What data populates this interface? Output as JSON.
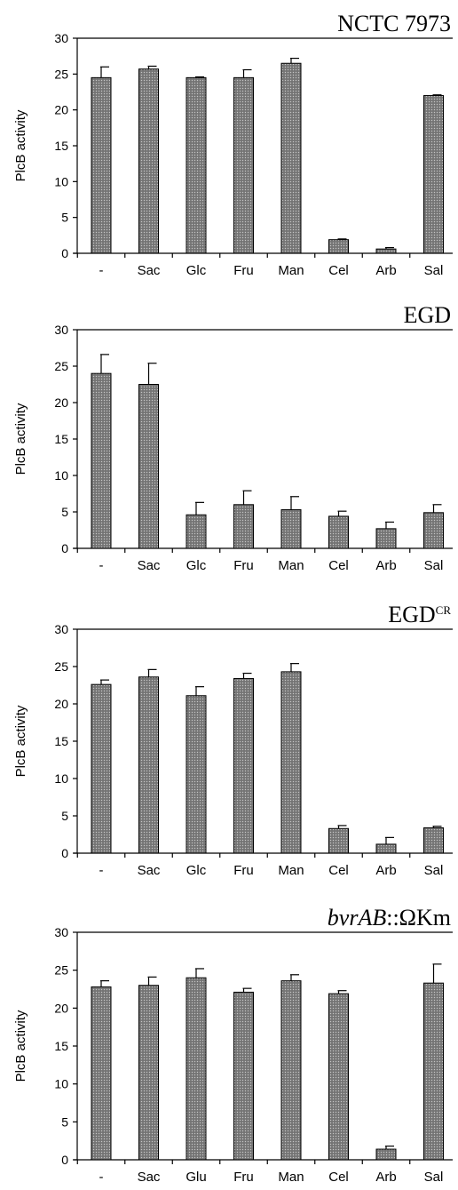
{
  "fill_color": "#7e7e7e",
  "chart_data": [
    {
      "type": "bar",
      "title": "NCTC 7973",
      "title_sup": "",
      "title_italic": "",
      "ylabel": "PlcB activity",
      "ylim": [
        0,
        30
      ],
      "yticks": [
        "0",
        "5",
        "10",
        "15",
        "20",
        "25",
        "30"
      ],
      "categories": [
        "-",
        "Sac",
        "Glc",
        "Fru",
        "Man",
        "Cel",
        "Arb",
        "Sal"
      ],
      "values": [
        24.5,
        25.7,
        24.5,
        24.5,
        26.5,
        1.9,
        0.6,
        22.0
      ],
      "errors": [
        1.5,
        0.4,
        0.1,
        1.1,
        0.7,
        0.1,
        0.2,
        0.1
      ]
    },
    {
      "type": "bar",
      "title": "EGD",
      "title_sup": "",
      "title_italic": "",
      "ylabel": "PlcB activity",
      "ylim": [
        0,
        30
      ],
      "yticks": [
        "0",
        "5",
        "10",
        "15",
        "20",
        "25",
        "30"
      ],
      "categories": [
        "-",
        "Sac",
        "Glc",
        "Fru",
        "Man",
        "Cel",
        "Arb",
        "Sal"
      ],
      "values": [
        24.0,
        22.5,
        4.6,
        6.0,
        5.3,
        4.4,
        2.7,
        4.9
      ],
      "errors": [
        2.6,
        2.9,
        1.7,
        1.9,
        1.8,
        0.7,
        0.9,
        1.1
      ]
    },
    {
      "type": "bar",
      "title": "EGD",
      "title_sup": "CR",
      "title_italic": "",
      "ylabel": "PlcB activity",
      "ylim": [
        0,
        30
      ],
      "yticks": [
        "0",
        "5",
        "10",
        "15",
        "20",
        "25",
        "30"
      ],
      "categories": [
        "-",
        "Sac",
        "Glc",
        "Fru",
        "Man",
        "Cel",
        "Arb",
        "Sal"
      ],
      "values": [
        22.6,
        23.6,
        21.1,
        23.4,
        24.3,
        3.3,
        1.2,
        3.4
      ],
      "errors": [
        0.6,
        1.0,
        1.2,
        0.7,
        1.1,
        0.4,
        0.9,
        0.2
      ]
    },
    {
      "type": "bar",
      "title": "::ΩKm",
      "title_sup": "",
      "title_italic": "bvrAB",
      "ylabel": "PlcB activity",
      "ylim": [
        0,
        30
      ],
      "yticks": [
        "0",
        "5",
        "10",
        "15",
        "20",
        "25",
        "30"
      ],
      "categories": [
        "-",
        "Sac",
        "Glu",
        "Fru",
        "Man",
        "Cel",
        "Arb",
        "Sal"
      ],
      "values": [
        22.8,
        23.0,
        24.0,
        22.1,
        23.6,
        21.9,
        1.4,
        23.3
      ],
      "errors": [
        0.8,
        1.1,
        1.2,
        0.5,
        0.8,
        0.4,
        0.4,
        2.5
      ]
    }
  ]
}
